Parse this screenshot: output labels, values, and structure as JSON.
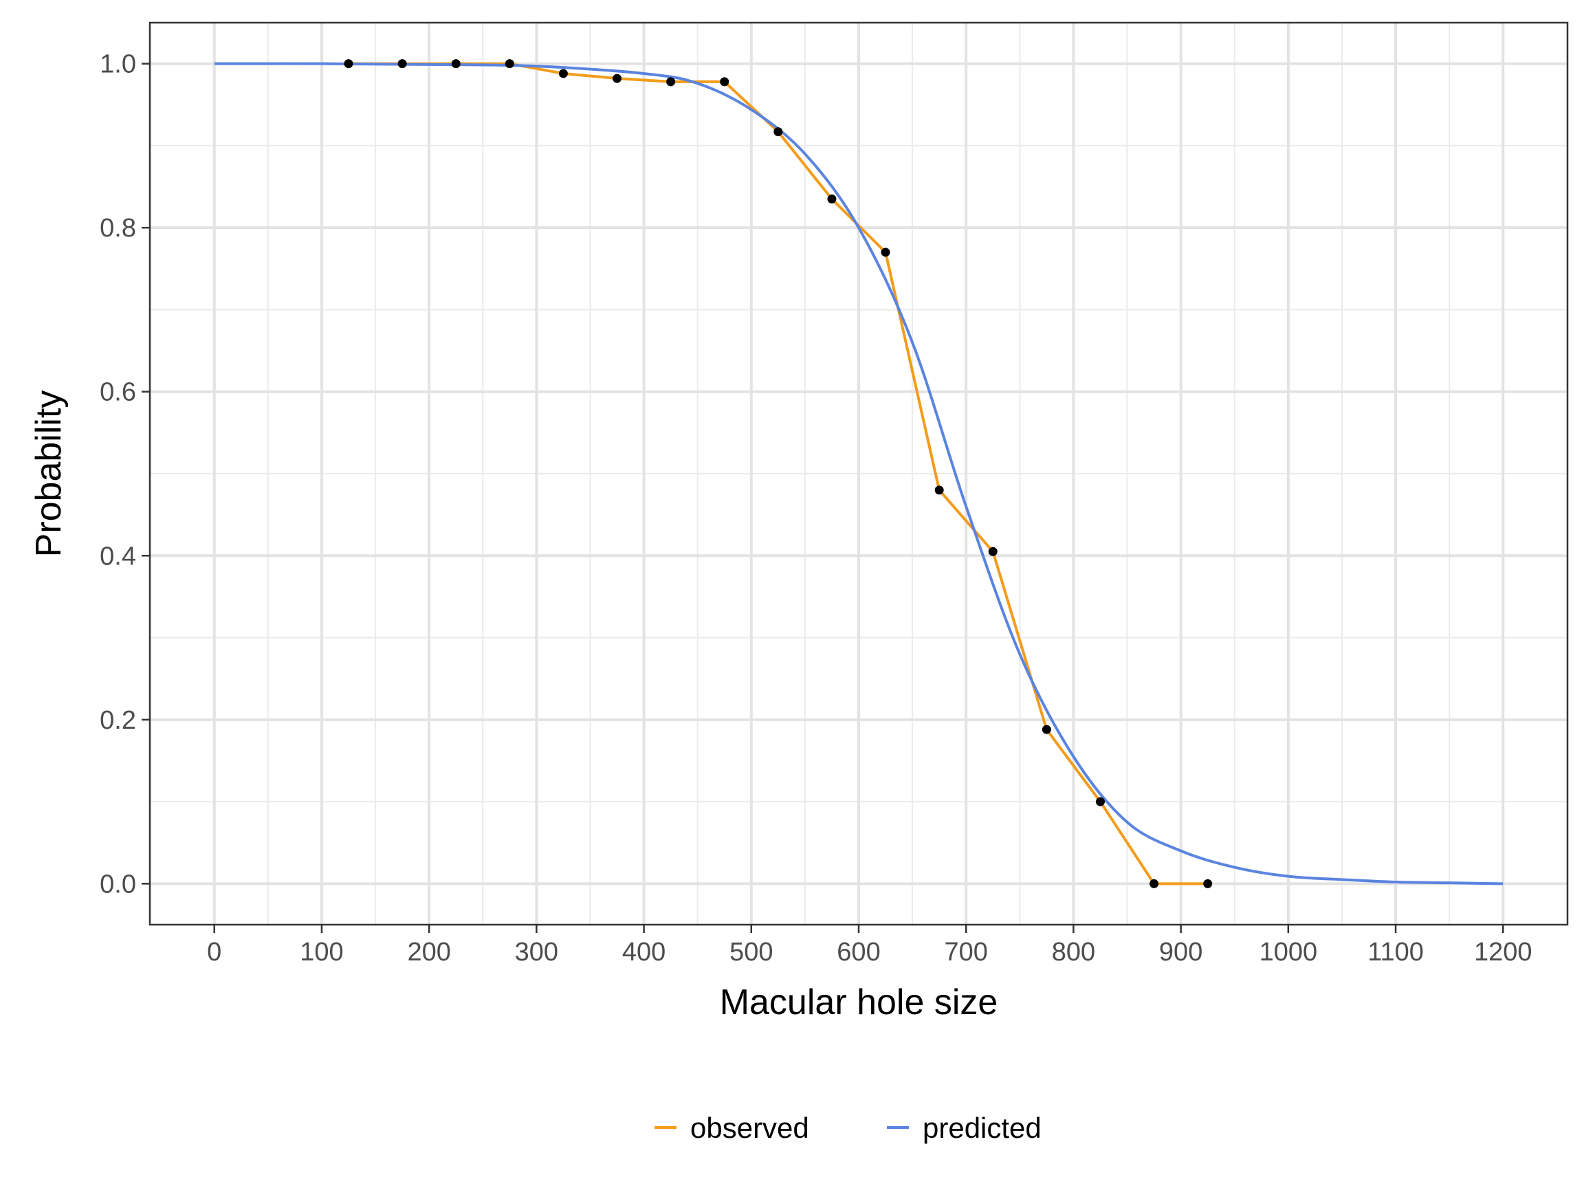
{
  "chart_data": {
    "type": "line",
    "xlabel": "Macular hole size",
    "ylabel": "Probability",
    "xlim": [
      -60,
      1260
    ],
    "ylim": [
      -0.05,
      1.05
    ],
    "x_ticks": [
      0,
      100,
      200,
      300,
      400,
      500,
      600,
      700,
      800,
      900,
      1000,
      1100,
      1200
    ],
    "x_tick_labels": [
      "0",
      "100",
      "200",
      "300",
      "400",
      "500",
      "600",
      "700",
      "800",
      "900",
      "1000",
      "1100",
      "1200"
    ],
    "y_ticks": [
      0.0,
      0.2,
      0.4,
      0.6,
      0.8,
      1.0
    ],
    "y_tick_labels": [
      "0.0",
      "0.2",
      "0.4",
      "0.6",
      "0.8",
      "1.0"
    ],
    "grid": true,
    "legend": "bottom",
    "series": [
      {
        "name": "observed",
        "color": "#f39c1b",
        "x": [
          125,
          175,
          225,
          275,
          325,
          375,
          425,
          475,
          525,
          575,
          625,
          675,
          725,
          775,
          825,
          875,
          925
        ],
        "y": [
          1.0,
          1.0,
          1.0,
          1.0,
          0.988,
          0.982,
          0.978,
          0.978,
          0.917,
          0.835,
          0.77,
          0.48,
          0.405,
          0.188,
          0.1,
          0.0,
          0.0
        ]
      },
      {
        "name": "predicted",
        "color": "#5b84e0",
        "x": [
          0,
          100,
          200,
          300,
          400,
          450,
          500,
          550,
          600,
          650,
          700,
          750,
          800,
          850,
          900,
          950,
          1000,
          1050,
          1100,
          1150,
          1200
        ],
        "y": [
          1.0,
          1.0,
          0.999,
          0.997,
          0.988,
          0.976,
          0.944,
          0.89,
          0.8,
          0.66,
          0.46,
          0.28,
          0.155,
          0.075,
          0.04,
          0.02,
          0.009,
          0.005,
          0.002,
          0.001,
          0.0
        ]
      }
    ]
  }
}
